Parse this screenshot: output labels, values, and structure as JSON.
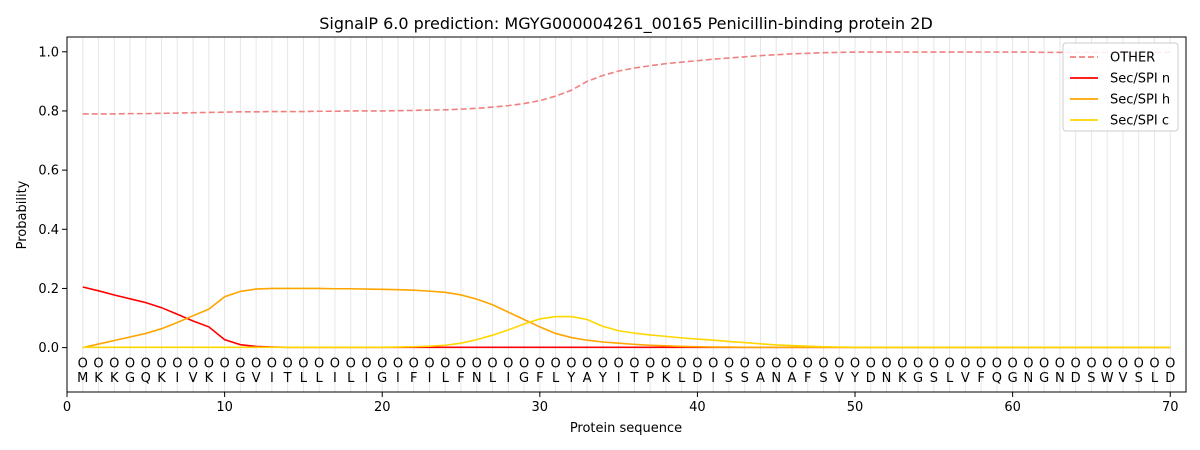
{
  "chart_data": {
    "type": "line",
    "title": "SignalP 6.0 prediction: MGYG000004261_00165 Penicillin-binding protein 2D",
    "xlabel": "Protein sequence",
    "ylabel": "Probability",
    "xlim": [
      0,
      71
    ],
    "ylim": [
      -0.15,
      1.05
    ],
    "xticks": [
      0,
      10,
      20,
      30,
      40,
      50,
      60,
      70
    ],
    "yticks": [
      0.0,
      0.2,
      0.4,
      0.6,
      0.8,
      1.0
    ],
    "ytick_labels": [
      "0.0",
      "0.2",
      "0.4",
      "0.6",
      "0.8",
      "1.0"
    ],
    "grid": "vertical lines at each residue",
    "legend_position": "top-right",
    "sequence": [
      "M",
      "K",
      "K",
      "G",
      "Q",
      "K",
      "I",
      "V",
      "K",
      "I",
      "G",
      "V",
      "I",
      "T",
      "L",
      "L",
      "I",
      "L",
      "I",
      "G",
      "I",
      "F",
      "I",
      "L",
      "F",
      "N",
      "L",
      "I",
      "G",
      "F",
      "L",
      "Y",
      "A",
      "Y",
      "I",
      "T",
      "P",
      "K",
      "L",
      "D",
      "I",
      "S",
      "S",
      "A",
      "N",
      "A",
      "F",
      "S",
      "V",
      "Y",
      "D",
      "N",
      "K",
      "G",
      "S",
      "L",
      "V",
      "F",
      "Q",
      "G",
      "N",
      "G",
      "N",
      "D",
      "S",
      "W",
      "V",
      "S",
      "L",
      "D"
    ],
    "position_marker": "O",
    "series": [
      {
        "name": "OTHER",
        "color": "#f08080",
        "style": "dashed",
        "values": [
          0.79,
          0.79,
          0.79,
          0.791,
          0.791,
          0.792,
          0.793,
          0.794,
          0.795,
          0.796,
          0.797,
          0.797,
          0.798,
          0.798,
          0.798,
          0.799,
          0.799,
          0.8,
          0.8,
          0.8,
          0.801,
          0.802,
          0.803,
          0.804,
          0.806,
          0.809,
          0.813,
          0.818,
          0.825,
          0.835,
          0.85,
          0.87,
          0.9,
          0.92,
          0.935,
          0.945,
          0.953,
          0.96,
          0.965,
          0.97,
          0.975,
          0.979,
          0.983,
          0.987,
          0.99,
          0.993,
          0.995,
          0.997,
          0.998,
          0.999,
          0.999,
          0.999,
          0.999,
          0.999,
          0.999,
          0.999,
          0.999,
          0.999,
          0.999,
          0.999,
          0.999,
          0.998,
          0.998,
          0.998,
          0.998,
          0.998,
          0.998,
          0.998,
          0.998,
          0.998
        ]
      },
      {
        "name": "Sec/SPI n",
        "color": "#ff0000",
        "style": "solid",
        "values": [
          0.205,
          0.192,
          0.178,
          0.165,
          0.152,
          0.135,
          0.113,
          0.09,
          0.07,
          0.027,
          0.01,
          0.004,
          0.002,
          0.001,
          0.001,
          0.001,
          0.001,
          0.001,
          0.001,
          0.001,
          0.001,
          0.001,
          0.001,
          0.001,
          0.001,
          0.001,
          0.001,
          0.001,
          0.001,
          0.001,
          0.001,
          0.001,
          0.001,
          0.001,
          0.001,
          0.001,
          0.001,
          0.001,
          0.001,
          0.001,
          0.001,
          0.001,
          0.001,
          0.001,
          0.001,
          0.001,
          0.001,
          0.001,
          0.001,
          0.001,
          0.001,
          0.001,
          0.001,
          0.001,
          0.001,
          0.001,
          0.001,
          0.001,
          0.001,
          0.001,
          0.001,
          0.001,
          0.001,
          0.001,
          0.001,
          0.001,
          0.001,
          0.001,
          0.001,
          0.001
        ]
      },
      {
        "name": "Sec/SPI h",
        "color": "#ffa500",
        "style": "solid",
        "values": [
          0.0,
          0.012,
          0.024,
          0.036,
          0.048,
          0.064,
          0.085,
          0.108,
          0.13,
          0.172,
          0.19,
          0.198,
          0.2,
          0.2,
          0.2,
          0.2,
          0.199,
          0.199,
          0.198,
          0.197,
          0.196,
          0.194,
          0.191,
          0.187,
          0.178,
          0.164,
          0.145,
          0.12,
          0.095,
          0.07,
          0.048,
          0.034,
          0.025,
          0.019,
          0.015,
          0.011,
          0.008,
          0.006,
          0.004,
          0.003,
          0.002,
          0.002,
          0.001,
          0.001,
          0.001,
          0.001,
          0.001,
          0.001,
          0.001,
          0.001,
          0.001,
          0.001,
          0.001,
          0.001,
          0.001,
          0.001,
          0.001,
          0.001,
          0.001,
          0.001,
          0.001,
          0.001,
          0.001,
          0.001,
          0.001,
          0.001,
          0.001,
          0.001,
          0.001,
          0.001
        ]
      },
      {
        "name": "Sec/SPI c",
        "color": "#ffd700",
        "style": "solid",
        "values": [
          0.001,
          0.001,
          0.001,
          0.001,
          0.001,
          0.001,
          0.001,
          0.001,
          0.001,
          0.001,
          0.001,
          0.001,
          0.001,
          0.001,
          0.001,
          0.001,
          0.001,
          0.001,
          0.001,
          0.001,
          0.002,
          0.003,
          0.005,
          0.008,
          0.015,
          0.027,
          0.042,
          0.06,
          0.08,
          0.097,
          0.105,
          0.105,
          0.095,
          0.072,
          0.057,
          0.049,
          0.043,
          0.038,
          0.033,
          0.029,
          0.025,
          0.021,
          0.017,
          0.013,
          0.009,
          0.007,
          0.005,
          0.003,
          0.002,
          0.001,
          0.001,
          0.001,
          0.001,
          0.001,
          0.001,
          0.001,
          0.001,
          0.001,
          0.001,
          0.001,
          0.001,
          0.001,
          0.001,
          0.001,
          0.001,
          0.001,
          0.001,
          0.001,
          0.001,
          0.001
        ]
      }
    ]
  }
}
